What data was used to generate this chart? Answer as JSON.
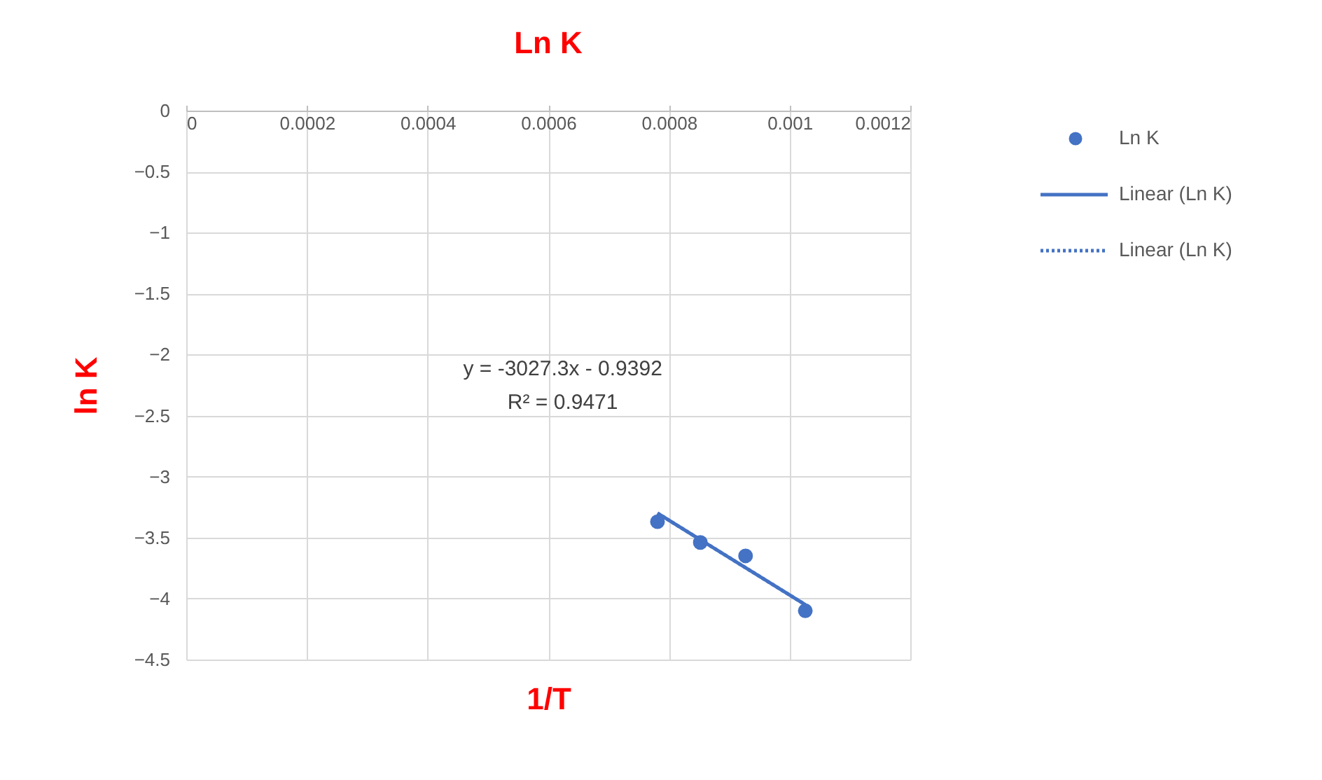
{
  "chart_data": {
    "type": "scatter",
    "title": "Ln K",
    "xlabel": "1/T",
    "ylabel": "ln K",
    "xlim": [
      0,
      0.0012
    ],
    "xticks": [
      0,
      0.0002,
      0.0004,
      0.0006,
      0.0008,
      0.001,
      0.0012
    ],
    "ylim": [
      -4.5,
      0
    ],
    "yticks": [
      0,
      -0.5,
      -1,
      -1.5,
      -2,
      -2.5,
      -3,
      -3.5,
      -4,
      -4.5
    ],
    "grid": true,
    "legend": "right",
    "annotations": [
      "y = -3027.3x - 0.9392",
      "R² = 0.9471"
    ],
    "series": [
      {
        "name": "Ln K",
        "marker": "circle",
        "color": "#4472c4",
        "x": [
          0.000781,
          0.000852,
          0.000927,
          0.001026
        ],
        "values": [
          -3.37,
          -3.54,
          -3.65,
          -4.1
        ]
      },
      {
        "name": "Linear (Ln K)",
        "type": "line",
        "line_style": "solid",
        "marker": "none",
        "color": "#4472c4",
        "x": [
          0.000781,
          0.001026
        ],
        "values": [
          -3.3,
          -4.05
        ]
      },
      {
        "name": "Linear (Ln K)",
        "type": "line",
        "line_style": "dotted",
        "marker": "none",
        "color": "#4472c4",
        "x": [
          0.000781,
          0.001026
        ],
        "values": [
          -3.3,
          -4.05
        ]
      }
    ]
  }
}
